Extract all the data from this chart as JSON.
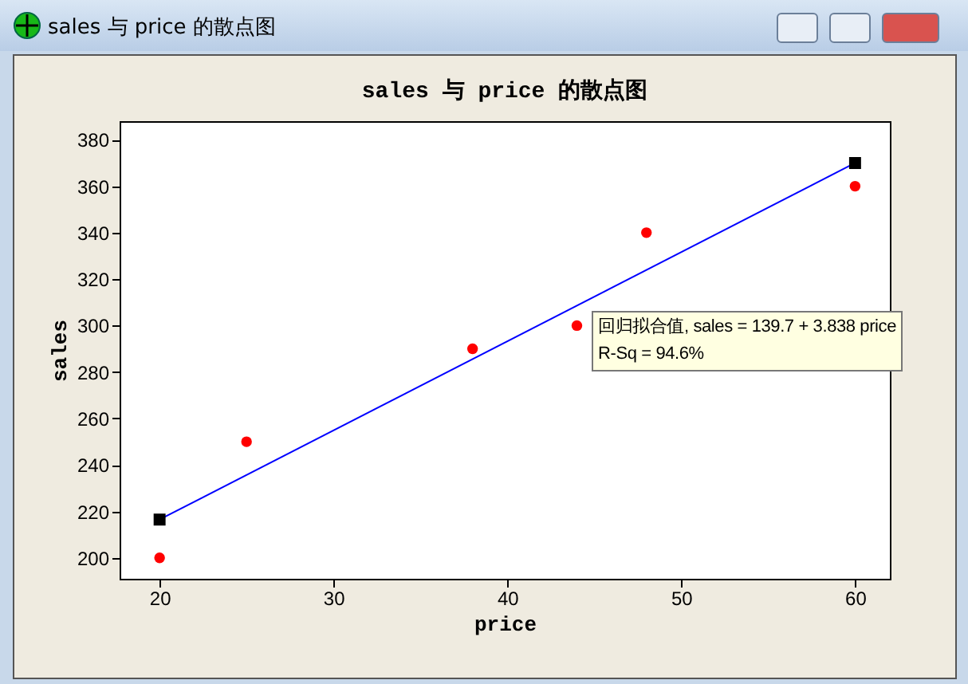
{
  "chart_data": {
    "type": "scatter",
    "title": "sales 与 price 的散点图",
    "xlabel": "price",
    "ylabel": "sales",
    "x": [
      20,
      25,
      38,
      44,
      48,
      60
    ],
    "series": [
      {
        "color": "#ff0000",
        "marker": "circle",
        "values": [
          200,
          250,
          290,
          300,
          340,
          360
        ]
      },
      {
        "type": "line",
        "color": "#0000ff",
        "marker": "square",
        "x": [
          20,
          60
        ],
        "values": [
          216.5,
          370
        ]
      }
    ],
    "xlim": [
      17.7,
      62
    ],
    "xticks": [
      20,
      30,
      40,
      50,
      60
    ],
    "ylim": [
      191,
      388
    ],
    "yticks": [
      200,
      220,
      240,
      260,
      280,
      300,
      320,
      340,
      360,
      380
    ],
    "annotations": [
      "回归拟合值, sales =  139.7 + 3.838 price",
      "R-Sq = 94.6%"
    ],
    "grid": false
  }
}
